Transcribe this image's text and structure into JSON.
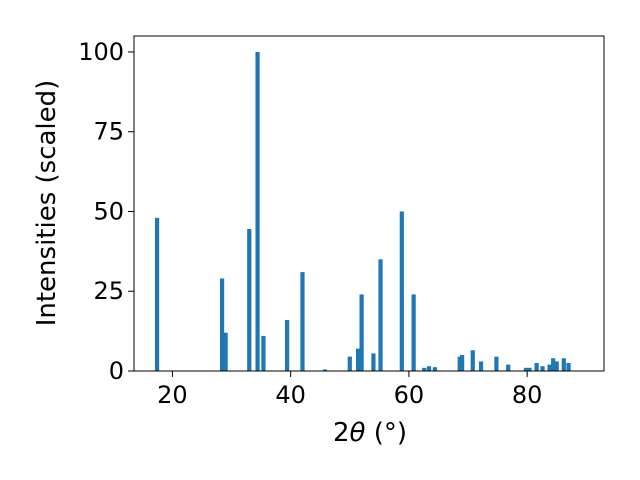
{
  "chart_data": {
    "type": "bar",
    "title": "",
    "xlabel_prefix": "2",
    "xlabel_theta": "θ",
    "xlabel_suffix": " (°)",
    "ylabel": "Intensities (scaled)",
    "xlim": [
      13.5,
      93.0
    ],
    "ylim": [
      0,
      105
    ],
    "xticks": [
      20,
      40,
      60,
      80
    ],
    "yticks": [
      0,
      25,
      50,
      75,
      100
    ],
    "grid": false,
    "bar_color": "#1f77b4",
    "series": [
      {
        "x": [
          17.4,
          28.4,
          29.0,
          33.0,
          34.4,
          35.4,
          39.4,
          42.0,
          45.8,
          50.0,
          51.4,
          52.0,
          54.0,
          55.2,
          58.8,
          60.8,
          62.6,
          63.4,
          64.4,
          68.6,
          69.0,
          70.8,
          72.2,
          74.8,
          76.8,
          79.8,
          80.4,
          81.6,
          82.6,
          83.8,
          84.4,
          85.0,
          86.2,
          87.0
        ],
        "values": [
          48,
          29,
          12,
          44.5,
          100,
          11,
          16,
          31,
          0.5,
          4.5,
          7,
          24,
          5.5,
          35,
          50,
          24,
          1,
          1.5,
          1.2,
          4.5,
          5,
          6.5,
          3,
          4.5,
          2,
          1,
          1,
          2.5,
          1.5,
          2,
          4,
          3,
          4,
          2.5
        ]
      }
    ]
  }
}
